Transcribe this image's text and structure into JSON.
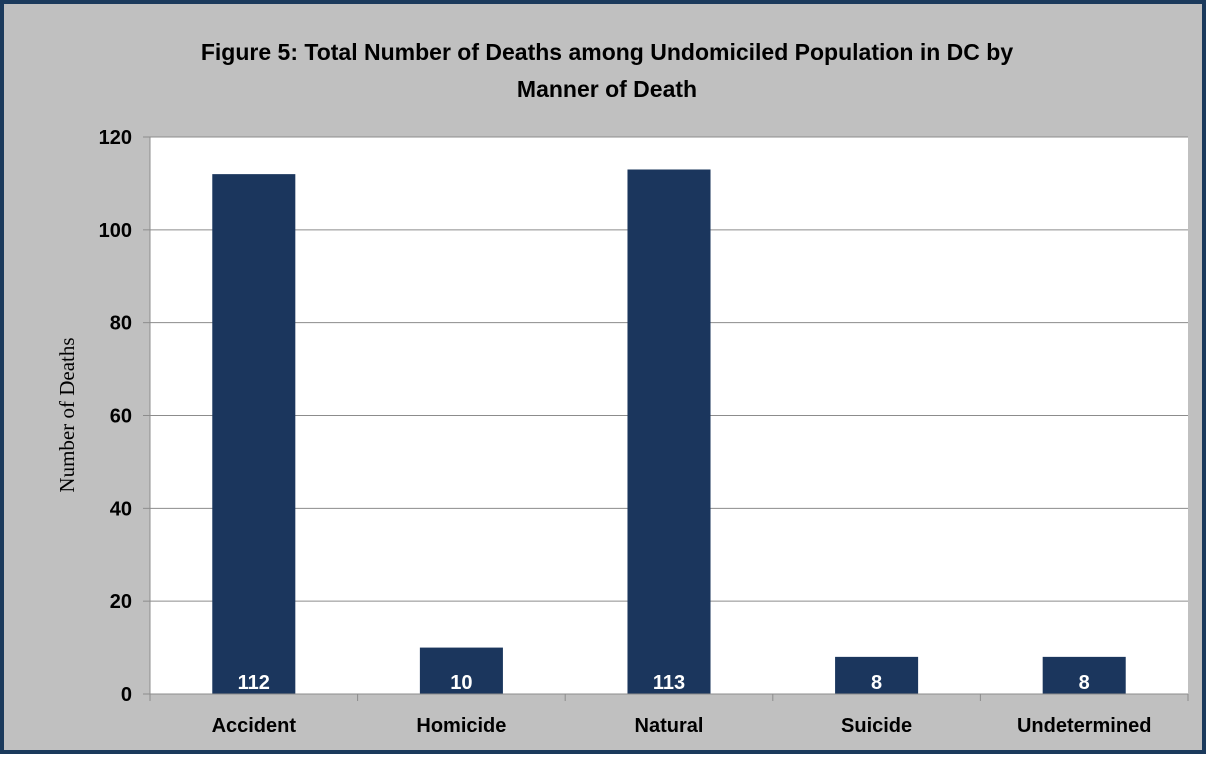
{
  "chart_data": {
    "type": "bar",
    "title_lines": [
      "Figure 5: Total Number of Deaths among Undomiciled Population in DC by",
      "Manner of Death"
    ],
    "xlabel": "",
    "ylabel": "Number of Deaths",
    "categories": [
      "Accident",
      "Homicide",
      "Natural",
      "Suicide",
      "Undetermined"
    ],
    "values": [
      112,
      10,
      113,
      8,
      8
    ],
    "data_labels": [
      "112",
      "10",
      "113",
      "8",
      "8"
    ],
    "ylim": [
      0,
      120
    ],
    "yticks": [
      "0",
      "20",
      "40",
      "60",
      "80",
      "100",
      "120"
    ],
    "grid": true,
    "legend": "none",
    "bar_color": "#1b365d",
    "background_color": "#c0c0c0",
    "plot_background": "#ffffff",
    "border_color": "#1b3a5c"
  }
}
